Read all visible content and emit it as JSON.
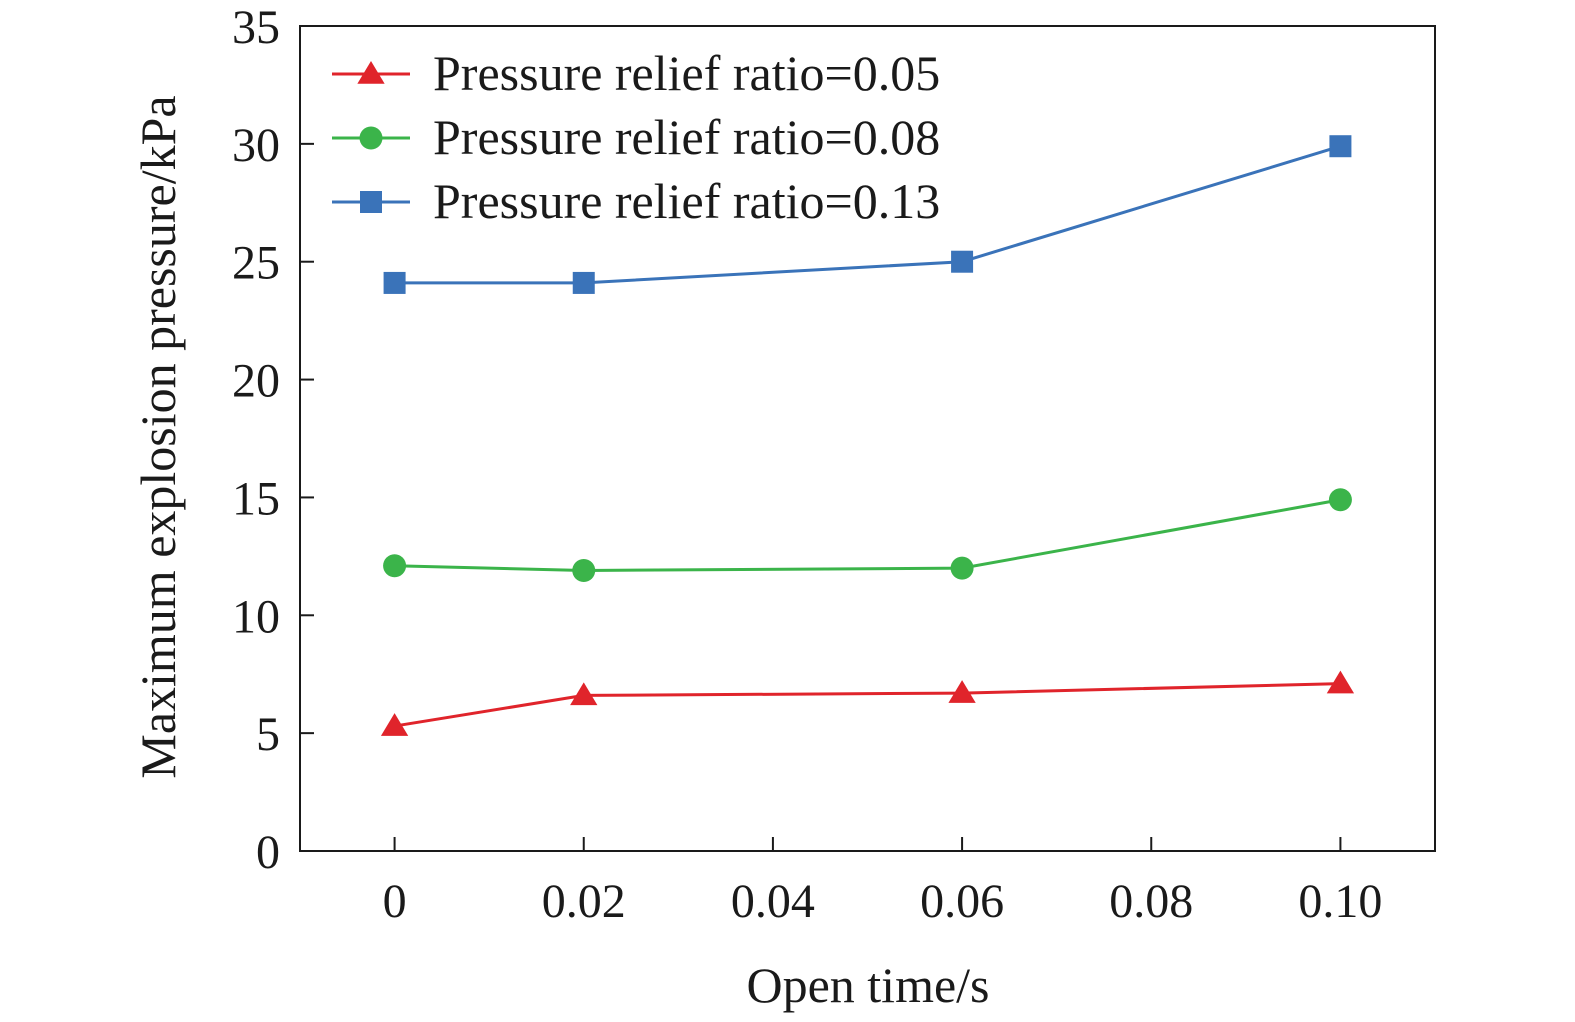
{
  "chart_data": {
    "type": "line",
    "xlabel": "Open time/s",
    "ylabel": "Maximum explosion pressure/kPa",
    "xlim": [
      -0.01,
      0.11
    ],
    "ylim": [
      0,
      35
    ],
    "x_ticks": [
      0,
      0.02,
      0.04,
      0.06,
      0.08,
      0.1
    ],
    "x_tick_labels": [
      "0",
      "0.02",
      "0.04",
      "0.06",
      "0.08",
      "0.10"
    ],
    "y_ticks": [
      0,
      5,
      10,
      15,
      20,
      25,
      30,
      35
    ],
    "y_tick_labels": [
      "0",
      "5",
      "10",
      "15",
      "20",
      "25",
      "30",
      "35"
    ],
    "grid": false,
    "legend_position": "top-left",
    "series": [
      {
        "name": "Pressure relief ratio=0.05",
        "color": "#e0242b",
        "marker": "triangle",
        "x": [
          0,
          0.02,
          0.06,
          0.1
        ],
        "y": [
          5.3,
          6.6,
          6.7,
          7.1
        ]
      },
      {
        "name": "Pressure relief ratio=0.08",
        "color": "#3bb44a",
        "marker": "circle",
        "x": [
          0,
          0.02,
          0.06,
          0.1
        ],
        "y": [
          12.1,
          11.9,
          12.0,
          14.9
        ]
      },
      {
        "name": "Pressure relief ratio=0.13",
        "color": "#3a73b9",
        "marker": "square",
        "x": [
          0,
          0.02,
          0.06,
          0.1
        ],
        "y": [
          24.1,
          24.1,
          25.0,
          29.9
        ]
      }
    ]
  }
}
